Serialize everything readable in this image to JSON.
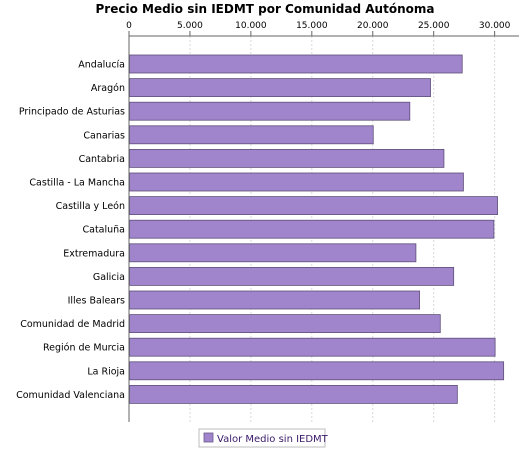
{
  "chart_data": {
    "type": "bar",
    "orientation": "horizontal",
    "title": "Precio Medio sin IEDMT por Comunidad Autónoma",
    "categories": [
      "Andalucía",
      "Aragón",
      "Principado de Asturias",
      "Canarias",
      "Cantabria",
      "Castilla - La Mancha",
      "Castilla y León",
      "Cataluña",
      "Extremadura",
      "Galicia",
      "Illes Balears",
      "Comunidad de Madrid",
      "Región de Murcia",
      "La Rioja",
      "Comunidad Valenciana"
    ],
    "series": [
      {
        "name": "Valor Medio sin IEDMT",
        "color": "#a084cc",
        "values": [
          27300,
          24700,
          23000,
          20000,
          25800,
          27400,
          30200,
          29900,
          23500,
          26600,
          23800,
          25500,
          30000,
          30700,
          26900
        ]
      }
    ],
    "x_ticks": [
      "0",
      "5.000",
      "10.000",
      "15.000",
      "20.000",
      "25.000",
      "30.000"
    ],
    "xlim": [
      0,
      32000
    ],
    "grid": true,
    "legend_position": "bottom"
  }
}
